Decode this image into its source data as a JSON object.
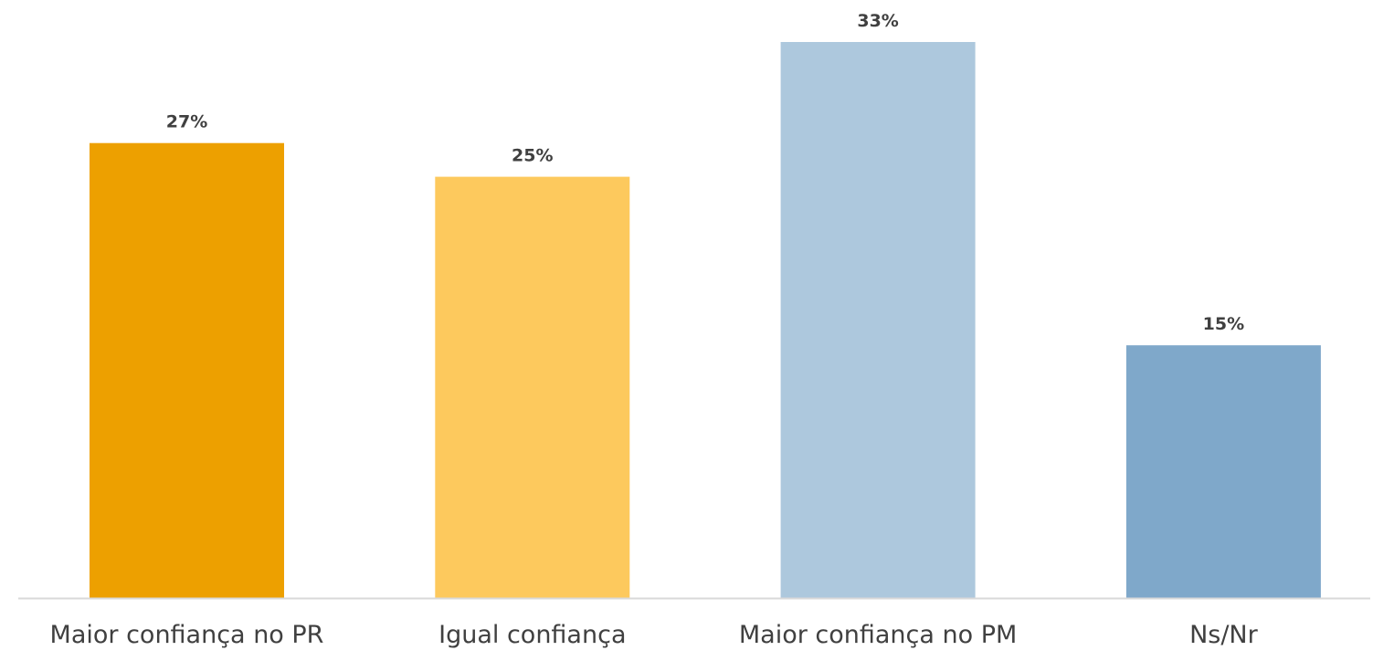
{
  "chart_data": {
    "type": "bar",
    "categories": [
      "Maior confiança no PR",
      "Igual confiança",
      "Maior confiança no PM",
      "Ns/Nr"
    ],
    "values": [
      27,
      25,
      33,
      15
    ],
    "value_labels": [
      "27%",
      "25%",
      "33%",
      "15%"
    ],
    "unit": "%",
    "colors": [
      "#EDA000",
      "#FDC95D",
      "#ADC8DD",
      "#7FA8CA"
    ],
    "axis_color": "#D9D9D9",
    "label_color": "#404040",
    "title": "",
    "xlabel": "",
    "ylabel": "",
    "ylim": [
      0,
      33
    ],
    "grid": false,
    "legend": "none"
  }
}
